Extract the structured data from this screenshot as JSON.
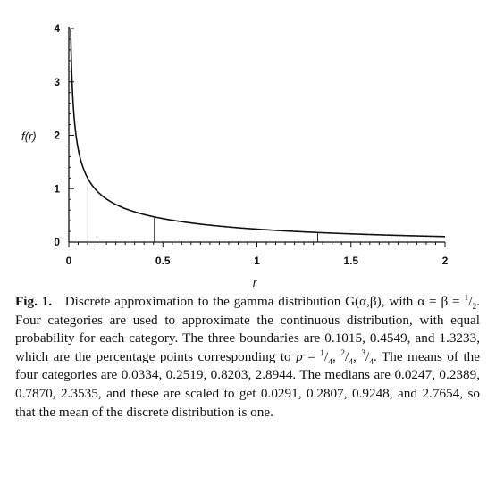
{
  "chart_data": {
    "type": "line",
    "xlabel": "r",
    "ylabel": "f(r)",
    "xlim": [
      0,
      2
    ],
    "ylim": [
      0,
      4
    ],
    "xticks": [
      "0",
      "0.5",
      "1",
      "1.5",
      "2"
    ],
    "yticks": [
      "0",
      "1",
      "2",
      "3",
      "4"
    ],
    "distribution": {
      "name": "gamma",
      "alpha": 0.5,
      "beta": 0.5
    },
    "boundaries": [
      0.1015,
      0.4549,
      1.3233
    ],
    "grid": false
  },
  "caption": {
    "label": "Fig. 1.",
    "seg1": "Discrete approximation to the gamma distribution G(α,β), with α = β = ",
    "half_num": "1",
    "half_den": "2",
    "seg2": ". Four categories are used to approximate the continuous distribution, with equal probability for each category. The three boundaries are 0.1015, 0.4549, and 1.3233, which are the percentage points corresponding to ",
    "p_var": "p",
    "seg3": " = ",
    "q1_num": "1",
    "q1_den": "4",
    "q2_num": "2",
    "q2_den": "4",
    "q3_num": "3",
    "q3_den": "4",
    "seg4": ". The means of the four categories are 0.0334, 0.2519, 0.8203, 2.8944. The medians are 0.0247, 0.2389, 0.7870, 2.3535, and these are scaled to get 0.0291, 0.2807, 0.9248, and 2.7654, so that the mean of the discrete distribution is one."
  }
}
